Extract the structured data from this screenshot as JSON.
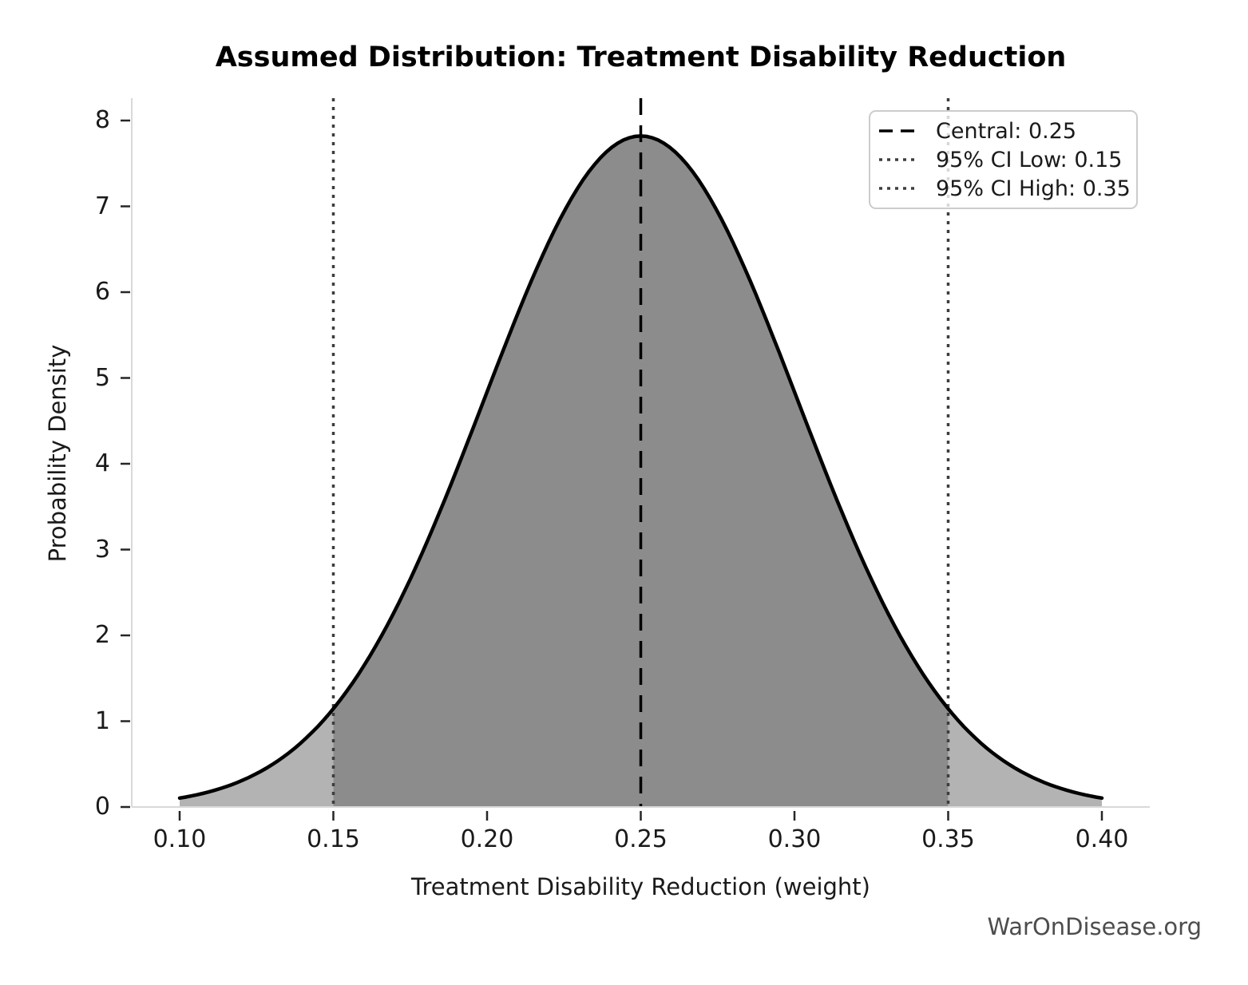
{
  "page": {
    "background": "#ffffff"
  },
  "chart_data": {
    "type": "area",
    "title": "Assumed Distribution: Treatment Disability Reduction",
    "xlabel": "Treatment Disability Reduction (weight)",
    "ylabel": "Probability Density",
    "watermark": "WarOnDisease.org",
    "grid": false,
    "legend_position": "upper right",
    "xlim": [
      0.085,
      0.415
    ],
    "ylim": [
      0,
      8.26
    ],
    "x_ticks": {
      "values": [
        0.1,
        0.15,
        0.2,
        0.25,
        0.3,
        0.35,
        0.4
      ],
      "labels": [
        "0.10",
        "0.15",
        "0.20",
        "0.25",
        "0.30",
        "0.35",
        "0.40"
      ]
    },
    "y_ticks": {
      "values": [
        0,
        1,
        2,
        3,
        4,
        5,
        6,
        7,
        8
      ],
      "labels": [
        "0",
        "1",
        "2",
        "3",
        "4",
        "5",
        "6",
        "7",
        "8"
      ]
    },
    "distribution": {
      "type": "normal",
      "mean": 0.25,
      "sigma": 0.05102,
      "ci95_low": 0.15,
      "ci95_high": 0.35,
      "peak_density": 7.82,
      "curve_x_range": [
        0.1,
        0.4
      ]
    },
    "series": [
      {
        "name": "probability-density-curve",
        "x": [
          0.1,
          0.125,
          0.15,
          0.175,
          0.2,
          0.225,
          0.25,
          0.275,
          0.3,
          0.325,
          0.35,
          0.375,
          0.4
        ],
        "y": [
          0.1,
          0.39,
          1.15,
          2.65,
          4.84,
          6.94,
          7.82,
          6.94,
          4.84,
          2.65,
          1.15,
          0.39,
          0.1
        ]
      }
    ],
    "reference_lines": [
      {
        "id": "central",
        "x": 0.25,
        "style": "dashed",
        "color": "#000000",
        "label": "Central: 0.25"
      },
      {
        "id": "ci-low",
        "x": 0.15,
        "style": "dotted",
        "color": "#3d3d3d",
        "label": "95% CI Low: 0.15"
      },
      {
        "id": "ci-high",
        "x": 0.35,
        "style": "dotted",
        "color": "#3d3d3d",
        "label": "95% CI High: 0.35"
      }
    ],
    "colors": {
      "curve": "#000000",
      "fill_outside_ci": "#b3b3b3",
      "fill_inside_ci": "#8c8c8c",
      "axis_spine": "#d9d9d9",
      "tick_mark": "#262626",
      "text": "#1a1a1a",
      "watermark": "#4d4d4d",
      "legend_border": "#cccccc"
    }
  }
}
